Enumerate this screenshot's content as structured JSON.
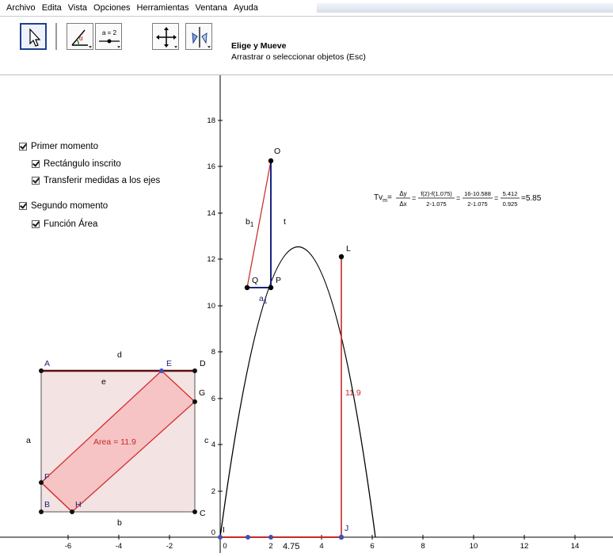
{
  "menu": [
    "Archivo",
    "Edita",
    "Vista",
    "Opciones",
    "Herramientas",
    "Ventana",
    "Ayuda"
  ],
  "toolbar": {
    "tools": [
      {
        "name": "move-tool",
        "icon": "arrow-cursor-icon",
        "selected": true
      },
      {
        "name": "angle-tool",
        "icon": "angle-icon"
      },
      {
        "name": "slider-tool",
        "icon": "slider-icon",
        "label": "a = 2"
      },
      {
        "name": "move-view-tool",
        "icon": "move-view-icon"
      },
      {
        "name": "reflect-tool",
        "icon": "reflect-icon"
      }
    ],
    "active_tool_name": "Elige y Mueve",
    "active_tool_hint": "Arrastrar o seleccionar objetos (Esc)"
  },
  "checkboxes": {
    "primer_momento": "Primer momento",
    "rectangulo_inscrito": "Rectángulo inscrito",
    "transferir_medidas": "Transferir medidas a los ejes",
    "segundo_momento": "Segundo momento",
    "funcion_area": "Función Área"
  },
  "axes": {
    "x_ticks": [
      "-6",
      "-4",
      "-2",
      "0",
      "2",
      "4",
      "6",
      "8",
      "10",
      "12",
      "14"
    ],
    "y_ticks": [
      "0",
      "2",
      "4",
      "6",
      "8",
      "10",
      "12",
      "14",
      "16",
      "18"
    ]
  },
  "points": {
    "O": "O",
    "Q": "Q",
    "P": "P",
    "L": "L",
    "I": "I",
    "J": "J",
    "A": "A",
    "B": "B",
    "C": "C",
    "D": "D",
    "E": "E",
    "F": "F",
    "G": "G",
    "H": "H"
  },
  "segment_labels": {
    "b1": "b",
    "b1_sub": "1",
    "t": "t",
    "a1": "a",
    "a1_sub": "1",
    "d": "d",
    "e": "e",
    "a": "a",
    "b": "b",
    "c": "c",
    "height_L": "11.9",
    "x_J": "4.75"
  },
  "area_label": "Area = 11.9",
  "tv_formula": {
    "lhs": "Tv",
    "lhs_sub": "m",
    "frac1_num": "Δy",
    "frac1_den": "Δx",
    "frac2_num": "f(2)-f(1.075)",
    "frac2_den": "2-1.075",
    "frac3_num": "16-10.588",
    "frac3_den": "2-1.075",
    "frac4_num": "5.412",
    "frac4_den": "0.925",
    "result": "5.85"
  },
  "colors": {
    "curve": "#000000",
    "triangle": "#1a237e",
    "red": "#c62828",
    "area_fill": "#f8c8c8",
    "box_fill": "#f0dcdc",
    "dark_red": "#5a1010",
    "point_blue": "#3f51b5"
  }
}
